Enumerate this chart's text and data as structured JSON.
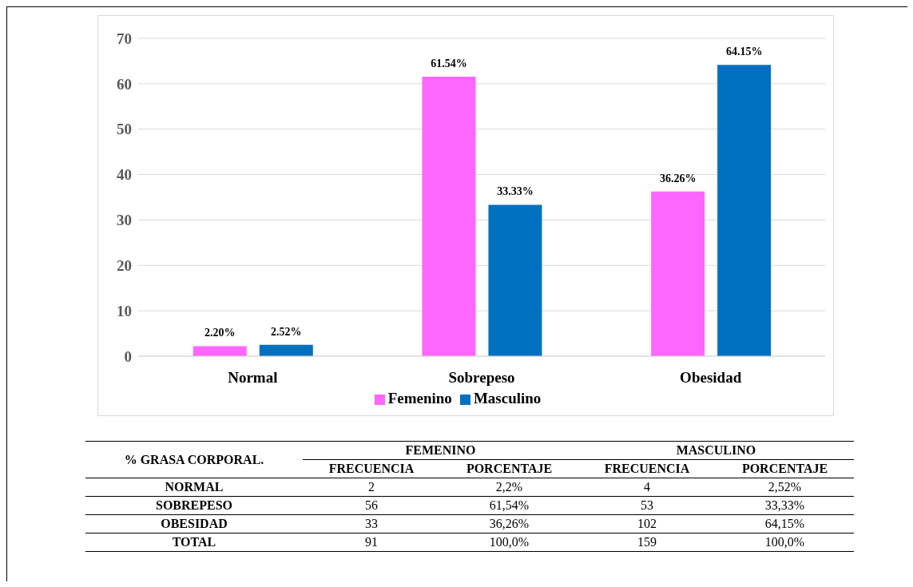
{
  "chart_data": [
    {
      "type": "bar",
      "categories": [
        "Normal",
        "Sobrepeso",
        "Obesidad"
      ],
      "series": [
        {
          "name": "Femenino",
          "color": "#ff66ff",
          "values": [
            2.2,
            61.54,
            36.26
          ],
          "value_labels": [
            "2.20%",
            "61.54%",
            "36.26%"
          ]
        },
        {
          "name": "Masculino",
          "color": "#0070c0",
          "values": [
            2.52,
            33.33,
            64.15
          ],
          "value_labels": [
            "2.52%",
            "33.33%",
            "64.15%"
          ]
        }
      ],
      "ylim": [
        0,
        70
      ],
      "yticks": [
        0,
        10,
        20,
        30,
        40,
        50,
        60,
        70
      ],
      "grid": "y",
      "legend": "bottom"
    },
    {
      "type": "other",
      "xlabel": "% GRASA CORPORAL.",
      "annotations": [
        "FEMENINO",
        "MASCULINO"
      ],
      "categories": [
        "NORMAL",
        "SOBREPESO",
        "OBESIDAD",
        "TOTAL"
      ],
      "series": [
        {
          "name": "FRECUENCIA",
          "values": [
            2,
            56,
            33,
            91
          ],
          "value_labels": [
            "2",
            "56",
            "33",
            "91"
          ]
        },
        {
          "name": "PORCENTAJE",
          "values": [
            2.2,
            61.54,
            36.26,
            100.0
          ],
          "value_labels": [
            "2,2%",
            "61,54%",
            "36,26%",
            "100,0%"
          ]
        },
        {
          "name": "FRECUENCIA",
          "values": [
            4,
            53,
            102,
            159
          ],
          "value_labels": [
            "4",
            "53",
            "102",
            "159"
          ]
        },
        {
          "name": "PORCENTAJE",
          "values": [
            2.52,
            33.33,
            64.15,
            100.0
          ],
          "value_labels": [
            "2,52%",
            "33,33%",
            "64,15%",
            "100,0%"
          ]
        }
      ]
    }
  ]
}
